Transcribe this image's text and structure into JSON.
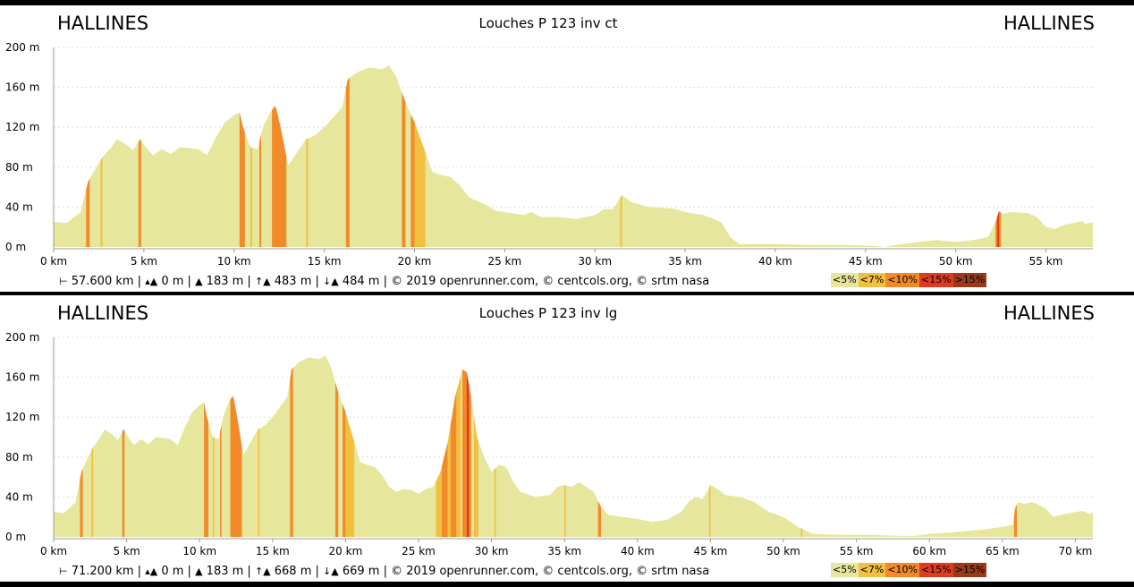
{
  "colors": {
    "profile_fill": "#e6e69c",
    "grade_7": "#f2c040",
    "grade_10": "#f28a2a",
    "grade_15": "#e03a20",
    "grade_over15": "#9b3a1a",
    "grid": "#dddddd"
  },
  "legend": [
    {
      "label": "<5%",
      "color": "#e6e69c"
    },
    {
      "label": "<7%",
      "color": "#f2c040"
    },
    {
      "label": "<10%",
      "color": "#f28a2a"
    },
    {
      "label": "<15%",
      "color": "#e03a20"
    },
    {
      "label": ">15%",
      "color": "#9b3a1a"
    }
  ],
  "panels": [
    {
      "start_town": "HALLINES",
      "end_town": "HALLINES",
      "title": "Louches P 123 inv ct",
      "footer": {
        "distance": "57.600 km",
        "min_alt": "0 m",
        "max_alt": "183 m",
        "ascent": "483 m",
        "descent": "484 m",
        "credits": "© 2019 openrunner.com, © centcols.org, © srtm nasa"
      }
    },
    {
      "start_town": "HALLINES",
      "end_town": "HALLINES",
      "title": "Louches P 123 inv lg",
      "footer": {
        "distance": "71.200 km",
        "min_alt": "0 m",
        "max_alt": "183 m",
        "ascent": "668 m",
        "descent": "669 m",
        "credits": "© 2019 openrunner.com, © centcols.org, © srtm nasa"
      }
    }
  ],
  "chart_data": [
    {
      "type": "area",
      "title": "Louches P 123 inv ct",
      "xlabel": "",
      "ylabel": "",
      "x_unit": "km",
      "y_unit": "m",
      "xlim": [
        0,
        57.6
      ],
      "ylim": [
        0,
        200
      ],
      "x_ticks": [
        0,
        5,
        10,
        15,
        20,
        25,
        30,
        35,
        40,
        45,
        50,
        55
      ],
      "x_tick_labels": [
        "0 km",
        "5 km",
        "10 km",
        "15 km",
        "20 km",
        "25 km",
        "30 km",
        "35 km",
        "40 km",
        "45 km",
        "50 km",
        "55 km"
      ],
      "y_ticks": [
        0,
        40,
        80,
        120,
        160,
        200
      ],
      "y_tick_labels": [
        "0 m",
        "40 m",
        "80 m",
        "120 m",
        "160 m",
        "200 m"
      ],
      "grid": true,
      "profile": [
        [
          0,
          25
        ],
        [
          0.7,
          24
        ],
        [
          1,
          28
        ],
        [
          1.5,
          35
        ],
        [
          1.9,
          65
        ],
        [
          2.2,
          75
        ],
        [
          2.7,
          90
        ],
        [
          3.2,
          100
        ],
        [
          3.5,
          108
        ],
        [
          4,
          103
        ],
        [
          4.4,
          97
        ],
        [
          4.8,
          108
        ],
        [
          5.1,
          100
        ],
        [
          5.5,
          92
        ],
        [
          6,
          98
        ],
        [
          6.5,
          93
        ],
        [
          7,
          100
        ],
        [
          8,
          98
        ],
        [
          8.5,
          92
        ],
        [
          9,
          110
        ],
        [
          9.5,
          125
        ],
        [
          10,
          132
        ],
        [
          10.3,
          135
        ],
        [
          10.5,
          120
        ],
        [
          10.9,
          100
        ],
        [
          11.3,
          98
        ],
        [
          11.6,
          120
        ],
        [
          12,
          135
        ],
        [
          12.3,
          142
        ],
        [
          12.6,
          118
        ],
        [
          13,
          82
        ],
        [
          13.5,
          95
        ],
        [
          14,
          108
        ],
        [
          14.5,
          112
        ],
        [
          15,
          120
        ],
        [
          15.5,
          130
        ],
        [
          16,
          140
        ],
        [
          16.3,
          168
        ],
        [
          16.8,
          175
        ],
        [
          17.5,
          180
        ],
        [
          18.2,
          178
        ],
        [
          18.6,
          182
        ],
        [
          19,
          170
        ],
        [
          19.5,
          145
        ],
        [
          20,
          125
        ],
        [
          20.5,
          100
        ],
        [
          21,
          75
        ],
        [
          21.5,
          72
        ],
        [
          22,
          70
        ],
        [
          22.5,
          62
        ],
        [
          23,
          50
        ],
        [
          24,
          42
        ],
        [
          24.5,
          36
        ],
        [
          25,
          35
        ],
        [
          26,
          32
        ],
        [
          26.5,
          35
        ],
        [
          27,
          30
        ],
        [
          28,
          30
        ],
        [
          29,
          28
        ],
        [
          30,
          32
        ],
        [
          30.5,
          38
        ],
        [
          31,
          38
        ],
        [
          31.5,
          52
        ],
        [
          32,
          45
        ],
        [
          33,
          40
        ],
        [
          34,
          39
        ],
        [
          34.5,
          38
        ],
        [
          35,
          35
        ],
        [
          36,
          32
        ],
        [
          37,
          25
        ],
        [
          37.5,
          10
        ],
        [
          38,
          3
        ],
        [
          40,
          3
        ],
        [
          42,
          2
        ],
        [
          44,
          2
        ],
        [
          45.5,
          1
        ],
        [
          46,
          0
        ],
        [
          47,
          3
        ],
        [
          48,
          5
        ],
        [
          49,
          7
        ],
        [
          50,
          5
        ],
        [
          51,
          7
        ],
        [
          51.8,
          10
        ],
        [
          52.2,
          25
        ],
        [
          52.4,
          36
        ],
        [
          52.6,
          33
        ],
        [
          53,
          35
        ],
        [
          54,
          34
        ],
        [
          54.5,
          30
        ],
        [
          55,
          20
        ],
        [
          55.5,
          18
        ],
        [
          56,
          22
        ],
        [
          57,
          26
        ],
        [
          57.2,
          23
        ],
        [
          57.6,
          25
        ]
      ],
      "grade_segments": [
        {
          "from": 1.8,
          "to": 2.0,
          "grade": "<10%"
        },
        {
          "from": 2.6,
          "to": 2.7,
          "grade": "<7%"
        },
        {
          "from": 4.7,
          "to": 4.85,
          "grade": "<10%"
        },
        {
          "from": 10.3,
          "to": 10.6,
          "grade": "<10%"
        },
        {
          "from": 10.9,
          "to": 11.0,
          "grade": "<7%"
        },
        {
          "from": 11.4,
          "to": 11.5,
          "grade": "<10%"
        },
        {
          "from": 12.1,
          "to": 12.9,
          "grade": "<10%"
        },
        {
          "from": 14.0,
          "to": 14.1,
          "grade": "<7%"
        },
        {
          "from": 16.2,
          "to": 16.4,
          "grade": "<10%"
        },
        {
          "from": 19.3,
          "to": 19.5,
          "grade": "<10%"
        },
        {
          "from": 19.8,
          "to": 20.0,
          "grade": "<10%"
        },
        {
          "from": 20.0,
          "to": 20.6,
          "grade": "<7%"
        },
        {
          "from": 31.4,
          "to": 31.5,
          "grade": "<7%"
        },
        {
          "from": 52.2,
          "to": 52.5,
          "grade": "<10%"
        },
        {
          "from": 52.3,
          "to": 52.4,
          "grade": "<15%"
        }
      ]
    },
    {
      "type": "area",
      "title": "Louches P 123 inv lg",
      "xlabel": "",
      "ylabel": "",
      "x_unit": "km",
      "y_unit": "m",
      "xlim": [
        0,
        71.2
      ],
      "ylim": [
        0,
        200
      ],
      "x_ticks": [
        0,
        5,
        10,
        15,
        20,
        25,
        30,
        35,
        40,
        45,
        50,
        55,
        60,
        65,
        70
      ],
      "x_tick_labels": [
        "0 km",
        "5 km",
        "10 km",
        "15 km",
        "20 km",
        "25 km",
        "30 km",
        "35 km",
        "40 km",
        "45 km",
        "50 km",
        "55 km",
        "60 km",
        "65 km",
        "70 km"
      ],
      "y_ticks": [
        0,
        40,
        80,
        120,
        160,
        200
      ],
      "y_tick_labels": [
        "0 m",
        "40 m",
        "80 m",
        "120 m",
        "160 m",
        "200 m"
      ],
      "grid": true,
      "profile": [
        [
          0,
          25
        ],
        [
          0.7,
          24
        ],
        [
          1,
          28
        ],
        [
          1.5,
          35
        ],
        [
          1.9,
          65
        ],
        [
          2.2,
          75
        ],
        [
          2.7,
          90
        ],
        [
          3.2,
          100
        ],
        [
          3.5,
          108
        ],
        [
          4,
          103
        ],
        [
          4.4,
          97
        ],
        [
          4.8,
          108
        ],
        [
          5.1,
          100
        ],
        [
          5.5,
          92
        ],
        [
          6,
          98
        ],
        [
          6.5,
          93
        ],
        [
          7,
          100
        ],
        [
          8,
          98
        ],
        [
          8.5,
          92
        ],
        [
          9,
          110
        ],
        [
          9.5,
          125
        ],
        [
          10,
          132
        ],
        [
          10.3,
          135
        ],
        [
          10.5,
          120
        ],
        [
          10.9,
          100
        ],
        [
          11.3,
          98
        ],
        [
          11.6,
          120
        ],
        [
          12,
          135
        ],
        [
          12.3,
          142
        ],
        [
          12.6,
          118
        ],
        [
          13,
          82
        ],
        [
          13.5,
          95
        ],
        [
          14,
          108
        ],
        [
          14.5,
          112
        ],
        [
          15,
          120
        ],
        [
          15.5,
          130
        ],
        [
          16,
          140
        ],
        [
          16.3,
          168
        ],
        [
          16.8,
          175
        ],
        [
          17.5,
          180
        ],
        [
          18.2,
          178
        ],
        [
          18.6,
          182
        ],
        [
          19,
          170
        ],
        [
          19.5,
          145
        ],
        [
          20,
          125
        ],
        [
          20.5,
          100
        ],
        [
          21,
          75
        ],
        [
          21.5,
          72
        ],
        [
          22,
          70
        ],
        [
          22.5,
          62
        ],
        [
          23,
          50
        ],
        [
          23.5,
          45
        ],
        [
          24,
          48
        ],
        [
          24.5,
          47
        ],
        [
          25,
          43
        ],
        [
          25.5,
          48
        ],
        [
          26,
          50
        ],
        [
          26.5,
          65
        ],
        [
          27,
          95
        ],
        [
          27.5,
          140
        ],
        [
          28,
          168
        ],
        [
          28.3,
          165
        ],
        [
          28.6,
          140
        ],
        [
          29,
          100
        ],
        [
          29.5,
          80
        ],
        [
          30,
          65
        ],
        [
          30.5,
          72
        ],
        [
          31,
          70
        ],
        [
          31.5,
          55
        ],
        [
          32,
          45
        ],
        [
          33,
          40
        ],
        [
          34,
          42
        ],
        [
          34.5,
          50
        ],
        [
          35,
          52
        ],
        [
          35.5,
          50
        ],
        [
          36,
          55
        ],
        [
          36.5,
          50
        ],
        [
          37,
          45
        ],
        [
          37.5,
          30
        ],
        [
          38,
          22
        ],
        [
          39,
          20
        ],
        [
          40,
          18
        ],
        [
          41,
          15
        ],
        [
          42,
          17
        ],
        [
          43,
          25
        ],
        [
          43.5,
          35
        ],
        [
          44,
          40
        ],
        [
          44.5,
          38
        ],
        [
          45,
          52
        ],
        [
          45.5,
          48
        ],
        [
          46,
          42
        ],
        [
          47,
          40
        ],
        [
          48,
          35
        ],
        [
          48.5,
          30
        ],
        [
          49,
          25
        ],
        [
          50,
          20
        ],
        [
          51,
          10
        ],
        [
          52,
          3
        ],
        [
          54,
          2
        ],
        [
          56,
          2
        ],
        [
          58,
          1
        ],
        [
          59,
          1
        ],
        [
          60,
          3
        ],
        [
          62,
          5
        ],
        [
          64,
          8
        ],
        [
          65,
          10
        ],
        [
          65.7,
          12
        ],
        [
          65.9,
          30
        ],
        [
          66.1,
          35
        ],
        [
          66.5,
          33
        ],
        [
          67,
          35
        ],
        [
          67.5,
          32
        ],
        [
          68,
          28
        ],
        [
          68.5,
          20
        ],
        [
          69,
          22
        ],
        [
          70,
          25
        ],
        [
          70.5,
          26
        ],
        [
          71,
          23
        ],
        [
          71.2,
          25
        ]
      ],
      "grade_segments": [
        {
          "from": 1.8,
          "to": 2.0,
          "grade": "<10%"
        },
        {
          "from": 2.6,
          "to": 2.7,
          "grade": "<7%"
        },
        {
          "from": 4.7,
          "to": 4.85,
          "grade": "<10%"
        },
        {
          "from": 10.3,
          "to": 10.6,
          "grade": "<10%"
        },
        {
          "from": 10.9,
          "to": 11.0,
          "grade": "<7%"
        },
        {
          "from": 11.4,
          "to": 11.5,
          "grade": "<10%"
        },
        {
          "from": 12.1,
          "to": 12.9,
          "grade": "<10%"
        },
        {
          "from": 14.0,
          "to": 14.1,
          "grade": "<7%"
        },
        {
          "from": 16.2,
          "to": 16.4,
          "grade": "<10%"
        },
        {
          "from": 19.3,
          "to": 19.5,
          "grade": "<10%"
        },
        {
          "from": 19.8,
          "to": 20.0,
          "grade": "<10%"
        },
        {
          "from": 20.0,
          "to": 20.6,
          "grade": "<7%"
        },
        {
          "from": 26.2,
          "to": 26.6,
          "grade": "<7%"
        },
        {
          "from": 26.6,
          "to": 27.0,
          "grade": "<10%"
        },
        {
          "from": 27.0,
          "to": 27.2,
          "grade": "<7%"
        },
        {
          "from": 27.2,
          "to": 27.6,
          "grade": "<10%"
        },
        {
          "from": 27.6,
          "to": 27.9,
          "grade": "<7%"
        },
        {
          "from": 28.0,
          "to": 28.6,
          "grade": "<10%"
        },
        {
          "from": 28.3,
          "to": 28.45,
          "grade": "<15%"
        },
        {
          "from": 28.8,
          "to": 29.1,
          "grade": "<7%"
        },
        {
          "from": 30.2,
          "to": 30.3,
          "grade": "<7%"
        },
        {
          "from": 35.0,
          "to": 35.1,
          "grade": "<7%"
        },
        {
          "from": 37.3,
          "to": 37.5,
          "grade": "<10%"
        },
        {
          "from": 44.9,
          "to": 45.0,
          "grade": "<7%"
        },
        {
          "from": 51.2,
          "to": 51.3,
          "grade": "<7%"
        },
        {
          "from": 65.8,
          "to": 66.0,
          "grade": "<10%"
        }
      ]
    }
  ]
}
